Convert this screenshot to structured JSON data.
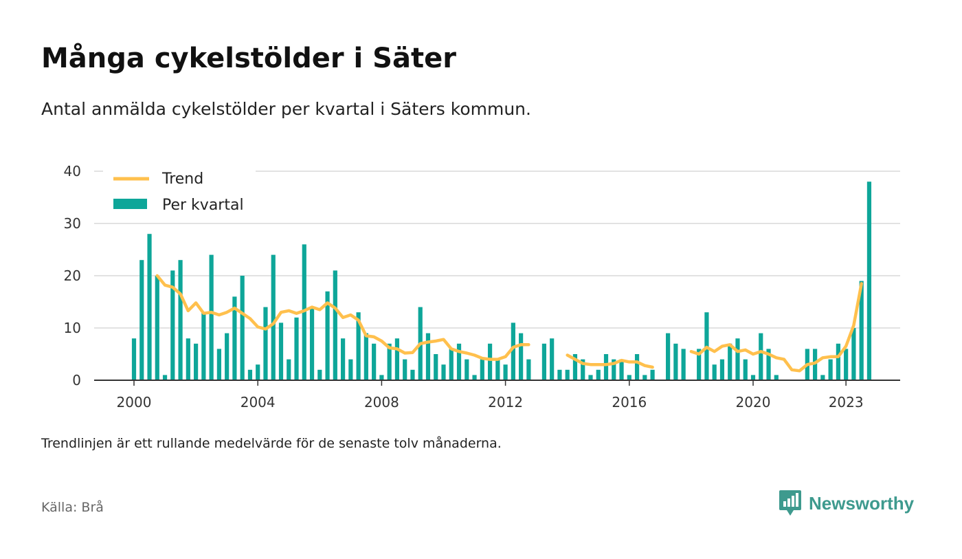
{
  "title": "Många cykelstölder i Säter",
  "subtitle": "Antal anmälda cykelstölder per kvartal i Säters kommun.",
  "note": "Trendlinjen är ett rullande medelvärde för de senaste tolv månaderna.",
  "source": "Källa: Brå",
  "brand": {
    "name": "Newsworthy",
    "logo_icon": "newsworthy-logo-icon",
    "color": "#3e9a8e"
  },
  "colors": {
    "bars": "#0ea699",
    "trend": "#ffc04d",
    "grid": "#d9d9d9",
    "axis": "#333333"
  },
  "chart_data": {
    "type": "bar",
    "title": "Många cykelstölder i Säter",
    "subtitle": "Antal anmälda cykelstölder per kvartal i Säters kommun.",
    "xlabel": "",
    "ylabel": "",
    "ylim": [
      0,
      40
    ],
    "xlim": [
      "1999-01",
      "2024-06"
    ],
    "y_ticks": [
      0,
      10,
      20,
      30,
      40
    ],
    "x_ticks": [
      {
        "label": "2000",
        "year": 2000
      },
      {
        "label": "2004",
        "year": 2004
      },
      {
        "label": "2008",
        "year": 2008
      },
      {
        "label": "2012",
        "year": 2012
      },
      {
        "label": "2016",
        "year": 2016
      },
      {
        "label": "2020",
        "year": 2020
      },
      {
        "label": "2023",
        "year": 2023
      }
    ],
    "grid": true,
    "legend": {
      "position": "top-left",
      "entries": [
        "Trend",
        "Per kvartal"
      ]
    },
    "series": [
      {
        "name": "Per kvartal",
        "kind": "bar",
        "points": [
          {
            "q": "2000-Q1",
            "v": 8
          },
          {
            "q": "2000-Q2",
            "v": 23
          },
          {
            "q": "2000-Q3",
            "v": 28
          },
          {
            "q": "2000-Q4",
            "v": 20
          },
          {
            "q": "2001-Q1",
            "v": 1
          },
          {
            "q": "2001-Q2",
            "v": 21
          },
          {
            "q": "2001-Q3",
            "v": 23
          },
          {
            "q": "2001-Q4",
            "v": 8
          },
          {
            "q": "2002-Q1",
            "v": 7
          },
          {
            "q": "2002-Q2",
            "v": 13
          },
          {
            "q": "2002-Q3",
            "v": 24
          },
          {
            "q": "2002-Q4",
            "v": 6
          },
          {
            "q": "2003-Q1",
            "v": 9
          },
          {
            "q": "2003-Q2",
            "v": 16
          },
          {
            "q": "2003-Q3",
            "v": 20
          },
          {
            "q": "2003-Q4",
            "v": 2
          },
          {
            "q": "2004-Q1",
            "v": 3
          },
          {
            "q": "2004-Q2",
            "v": 14
          },
          {
            "q": "2004-Q3",
            "v": 24
          },
          {
            "q": "2004-Q4",
            "v": 11
          },
          {
            "q": "2005-Q1",
            "v": 4
          },
          {
            "q": "2005-Q2",
            "v": 12
          },
          {
            "q": "2005-Q3",
            "v": 26
          },
          {
            "q": "2005-Q4",
            "v": 14
          },
          {
            "q": "2006-Q1",
            "v": 2
          },
          {
            "q": "2006-Q2",
            "v": 17
          },
          {
            "q": "2006-Q3",
            "v": 21
          },
          {
            "q": "2006-Q4",
            "v": 8
          },
          {
            "q": "2007-Q1",
            "v": 4
          },
          {
            "q": "2007-Q2",
            "v": 13
          },
          {
            "q": "2007-Q3",
            "v": 9
          },
          {
            "q": "2007-Q4",
            "v": 7
          },
          {
            "q": "2008-Q1",
            "v": 1
          },
          {
            "q": "2008-Q2",
            "v": 7
          },
          {
            "q": "2008-Q3",
            "v": 8
          },
          {
            "q": "2008-Q4",
            "v": 4
          },
          {
            "q": "2009-Q1",
            "v": 2
          },
          {
            "q": "2009-Q2",
            "v": 14
          },
          {
            "q": "2009-Q3",
            "v": 9
          },
          {
            "q": "2009-Q4",
            "v": 5
          },
          {
            "q": "2010-Q1",
            "v": 3
          },
          {
            "q": "2010-Q2",
            "v": 6
          },
          {
            "q": "2010-Q3",
            "v": 7
          },
          {
            "q": "2010-Q4",
            "v": 4
          },
          {
            "q": "2011-Q1",
            "v": 1
          },
          {
            "q": "2011-Q2",
            "v": 4
          },
          {
            "q": "2011-Q3",
            "v": 7
          },
          {
            "q": "2011-Q4",
            "v": 4
          },
          {
            "q": "2012-Q1",
            "v": 3
          },
          {
            "q": "2012-Q2",
            "v": 11
          },
          {
            "q": "2012-Q3",
            "v": 9
          },
          {
            "q": "2012-Q4",
            "v": 4
          },
          {
            "q": "2013-Q2",
            "v": 7
          },
          {
            "q": "2013-Q3",
            "v": 8
          },
          {
            "q": "2013-Q4",
            "v": 2
          },
          {
            "q": "2014-Q1",
            "v": 2
          },
          {
            "q": "2014-Q2",
            "v": 5
          },
          {
            "q": "2014-Q3",
            "v": 4
          },
          {
            "q": "2014-Q4",
            "v": 1
          },
          {
            "q": "2015-Q1",
            "v": 2
          },
          {
            "q": "2015-Q2",
            "v": 5
          },
          {
            "q": "2015-Q3",
            "v": 4
          },
          {
            "q": "2015-Q4",
            "v": 4
          },
          {
            "q": "2016-Q1",
            "v": 1
          },
          {
            "q": "2016-Q2",
            "v": 5
          },
          {
            "q": "2016-Q3",
            "v": 1
          },
          {
            "q": "2016-Q4",
            "v": 2
          },
          {
            "q": "2017-Q2",
            "v": 9
          },
          {
            "q": "2017-Q3",
            "v": 7
          },
          {
            "q": "2017-Q4",
            "v": 6
          },
          {
            "q": "2018-Q2",
            "v": 6
          },
          {
            "q": "2018-Q3",
            "v": 13
          },
          {
            "q": "2018-Q4",
            "v": 3
          },
          {
            "q": "2019-Q1",
            "v": 4
          },
          {
            "q": "2019-Q2",
            "v": 7
          },
          {
            "q": "2019-Q3",
            "v": 8
          },
          {
            "q": "2019-Q4",
            "v": 4
          },
          {
            "q": "2020-Q1",
            "v": 1
          },
          {
            "q": "2020-Q2",
            "v": 9
          },
          {
            "q": "2020-Q3",
            "v": 6
          },
          {
            "q": "2020-Q4",
            "v": 1
          },
          {
            "q": "2021-Q4",
            "v": 6
          },
          {
            "q": "2022-Q1",
            "v": 6
          },
          {
            "q": "2022-Q2",
            "v": 1
          },
          {
            "q": "2022-Q3",
            "v": 4
          },
          {
            "q": "2022-Q4",
            "v": 7
          },
          {
            "q": "2023-Q1",
            "v": 6
          },
          {
            "q": "2023-Q2",
            "v": 10
          },
          {
            "q": "2023-Q3",
            "v": 19
          },
          {
            "q": "2023-Q4",
            "v": 38
          }
        ]
      },
      {
        "name": "Trend",
        "kind": "line",
        "segments": [
          [
            {
              "q": "2000-Q4",
              "v": 20
            },
            {
              "q": "2001-Q1",
              "v": 18.2
            },
            {
              "q": "2001-Q2",
              "v": 17.8
            },
            {
              "q": "2001-Q3",
              "v": 16.5
            },
            {
              "q": "2001-Q4",
              "v": 13.3
            },
            {
              "q": "2002-Q1",
              "v": 14.8
            },
            {
              "q": "2002-Q2",
              "v": 12.8
            },
            {
              "q": "2002-Q3",
              "v": 13
            },
            {
              "q": "2002-Q4",
              "v": 12.5
            },
            {
              "q": "2003-Q1",
              "v": 13
            },
            {
              "q": "2003-Q2",
              "v": 13.8
            },
            {
              "q": "2003-Q3",
              "v": 12.8
            },
            {
              "q": "2003-Q4",
              "v": 11.8
            },
            {
              "q": "2004-Q1",
              "v": 10.2
            },
            {
              "q": "2004-Q2",
              "v": 9.8
            },
            {
              "q": "2004-Q3",
              "v": 10.8
            },
            {
              "q": "2004-Q4",
              "v": 13
            },
            {
              "q": "2005-Q1",
              "v": 13.3
            },
            {
              "q": "2005-Q2",
              "v": 12.8
            },
            {
              "q": "2005-Q3",
              "v": 13.3
            },
            {
              "q": "2005-Q4",
              "v": 14
            },
            {
              "q": "2006-Q1",
              "v": 13.5
            },
            {
              "q": "2006-Q2",
              "v": 14.8
            },
            {
              "q": "2006-Q3",
              "v": 13.8
            },
            {
              "q": "2006-Q4",
              "v": 12
            },
            {
              "q": "2007-Q1",
              "v": 12.5
            },
            {
              "q": "2007-Q2",
              "v": 11.5
            },
            {
              "q": "2007-Q3",
              "v": 8.5
            },
            {
              "q": "2007-Q4",
              "v": 8.3
            },
            {
              "q": "2008-Q1",
              "v": 7.5
            },
            {
              "q": "2008-Q2",
              "v": 6.2
            },
            {
              "q": "2008-Q3",
              "v": 6
            },
            {
              "q": "2008-Q4",
              "v": 5.2
            },
            {
              "q": "2009-Q1",
              "v": 5.3
            },
            {
              "q": "2009-Q2",
              "v": 7
            },
            {
              "q": "2009-Q3",
              "v": 7.3
            },
            {
              "q": "2009-Q4",
              "v": 7.5
            },
            {
              "q": "2010-Q1",
              "v": 7.8
            },
            {
              "q": "2010-Q2",
              "v": 6
            },
            {
              "q": "2010-Q3",
              "v": 5.5
            },
            {
              "q": "2010-Q4",
              "v": 5.2
            },
            {
              "q": "2011-Q1",
              "v": 4.8
            },
            {
              "q": "2011-Q2",
              "v": 4.2
            },
            {
              "q": "2011-Q3",
              "v": 4
            },
            {
              "q": "2011-Q4",
              "v": 4
            },
            {
              "q": "2012-Q1",
              "v": 4.5
            },
            {
              "q": "2012-Q2",
              "v": 6.3
            },
            {
              "q": "2012-Q3",
              "v": 6.8
            },
            {
              "q": "2012-Q4",
              "v": 6.8
            }
          ],
          [
            {
              "q": "2014-Q1",
              "v": 4.8
            },
            {
              "q": "2014-Q2",
              "v": 4
            },
            {
              "q": "2014-Q3",
              "v": 3.2
            },
            {
              "q": "2014-Q4",
              "v": 3
            },
            {
              "q": "2015-Q1",
              "v": 3
            },
            {
              "q": "2015-Q2",
              "v": 3
            },
            {
              "q": "2015-Q3",
              "v": 3.2
            },
            {
              "q": "2015-Q4",
              "v": 3.8
            },
            {
              "q": "2016-Q1",
              "v": 3.5
            },
            {
              "q": "2016-Q2",
              "v": 3.5
            },
            {
              "q": "2016-Q3",
              "v": 2.8
            },
            {
              "q": "2016-Q4",
              "v": 2.5
            }
          ],
          [
            {
              "q": "2018-Q1",
              "v": 5.5
            },
            {
              "q": "2018-Q2",
              "v": 5
            },
            {
              "q": "2018-Q3",
              "v": 6.3
            },
            {
              "q": "2018-Q4",
              "v": 5.5
            },
            {
              "q": "2019-Q1",
              "v": 6.5
            },
            {
              "q": "2019-Q2",
              "v": 6.8
            },
            {
              "q": "2019-Q3",
              "v": 5.5
            },
            {
              "q": "2019-Q4",
              "v": 5.8
            },
            {
              "q": "2020-Q1",
              "v": 5
            },
            {
              "q": "2020-Q2",
              "v": 5.5
            },
            {
              "q": "2020-Q3",
              "v": 5
            },
            {
              "q": "2020-Q4",
              "v": 4.3
            },
            {
              "q": "2021-Q1",
              "v": 4
            },
            {
              "q": "2021-Q2",
              "v": 2
            },
            {
              "q": "2021-Q3",
              "v": 1.8
            },
            {
              "q": "2021-Q4",
              "v": 3
            },
            {
              "q": "2022-Q1",
              "v": 3.3
            },
            {
              "q": "2022-Q2",
              "v": 4.3
            },
            {
              "q": "2022-Q3",
              "v": 4.5
            },
            {
              "q": "2022-Q4",
              "v": 4.5
            },
            {
              "q": "2023-Q1",
              "v": 6.5
            },
            {
              "q": "2023-Q2",
              "v": 10.5
            },
            {
              "q": "2023-Q3",
              "v": 18.5
            }
          ]
        ]
      }
    ]
  }
}
